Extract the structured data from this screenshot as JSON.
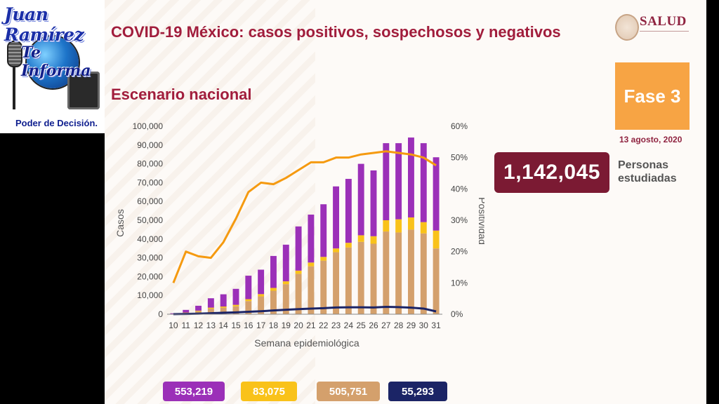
{
  "logo": {
    "line1": "Juan Ramírez",
    "line2": "Te Informa",
    "line3": "Poder de Decisión."
  },
  "title": "COVID-19 México: casos positivos, sospechosos y negativos",
  "subtitle": "Escenario nacional",
  "brand": {
    "name": "SALUD",
    "emblem_icon": "mexico-coat-of-arms-icon",
    "color": "#8f2340"
  },
  "phase": {
    "label": "Fase 3",
    "date": "13 agosto, 2020",
    "color": "#f7a444"
  },
  "people": {
    "value": "1,142,045",
    "label": "Personas estudiadas",
    "color": "#7b1a33"
  },
  "legend": [
    {
      "value": "553,219",
      "color": "#9b30b8"
    },
    {
      "value": "83,075",
      "color": "#f9c21a"
    },
    {
      "value": "505,751",
      "color": "#d4a06c"
    },
    {
      "value": "55,293",
      "color": "#1b2466"
    }
  ],
  "chart_data": {
    "type": "bar",
    "stacked": true,
    "xlabel": "Semana epidemiológica",
    "ylabel": "Casos",
    "y2label": "Positividad",
    "ylim": [
      0,
      100000
    ],
    "y2lim": [
      0,
      60
    ],
    "yticks": [
      "0",
      "10,000",
      "20,000",
      "30,000",
      "40,000",
      "50,000",
      "60,000",
      "70,000",
      "80,000",
      "90,000",
      "100,000"
    ],
    "y2ticks": [
      "0%",
      "10%",
      "20%",
      "30%",
      "40%",
      "50%",
      "60%"
    ],
    "categories": [
      "10",
      "11",
      "12",
      "13",
      "14",
      "15",
      "16",
      "17",
      "18",
      "19",
      "20",
      "21",
      "22",
      "23",
      "24",
      "25",
      "26",
      "27",
      "28",
      "29",
      "30",
      "31"
    ],
    "series": [
      {
        "kind": "bar",
        "color": "#d4a06c",
        "values": [
          150,
          700,
          1600,
          3000,
          3500,
          4200,
          7000,
          9500,
          12500,
          16000,
          21500,
          25500,
          28500,
          33000,
          35500,
          38500,
          37500,
          44000,
          43500,
          45000,
          43000,
          35000
        ]
      },
      {
        "kind": "bar",
        "color": "#f9c21a",
        "values": [
          50,
          200,
          300,
          500,
          600,
          800,
          1000,
          1200,
          1500,
          1500,
          1700,
          2000,
          2000,
          2000,
          2500,
          3500,
          4000,
          6000,
          7000,
          6500,
          6000,
          9500
        ]
      },
      {
        "kind": "bar",
        "color": "#9b30b8",
        "values": [
          300,
          1400,
          2600,
          5000,
          6500,
          8500,
          12500,
          13000,
          17000,
          19500,
          23500,
          25500,
          28000,
          33000,
          34000,
          38000,
          35000,
          41000,
          40500,
          42500,
          42000,
          39000
        ]
      },
      {
        "kind": "line",
        "axis": "y",
        "color": "#1b2466",
        "values": [
          50,
          150,
          300,
          500,
          800,
          1000,
          1300,
          1600,
          2000,
          2400,
          2700,
          3000,
          3200,
          3600,
          3700,
          3700,
          3600,
          3900,
          3800,
          3500,
          3000,
          1500
        ]
      },
      {
        "kind": "line",
        "axis": "y2",
        "color": "#f59a10",
        "values": [
          10,
          20,
          18.5,
          18,
          23,
          30.5,
          39,
          42,
          41.5,
          43.5,
          46,
          48.5,
          48.5,
          50,
          50,
          51,
          51.5,
          52,
          51.5,
          51,
          50,
          47.5
        ]
      }
    ]
  }
}
